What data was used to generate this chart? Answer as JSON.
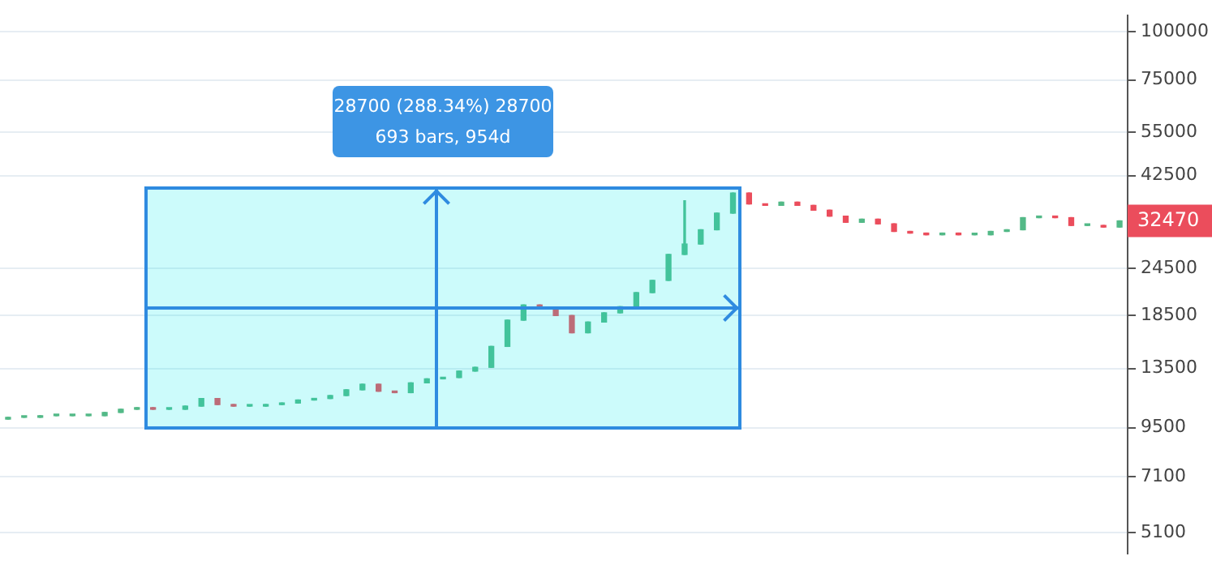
{
  "chart_data": {
    "type": "candlestick",
    "categories": [
      null,
      null,
      null,
      null,
      null,
      null,
      null,
      null,
      null,
      null,
      null,
      null,
      null,
      null,
      null,
      null,
      null,
      null,
      null,
      null,
      null,
      null,
      null,
      null,
      null,
      null,
      null,
      null,
      null,
      null,
      null,
      null,
      null,
      null,
      null,
      null,
      null,
      null,
      null,
      null,
      null,
      null,
      null,
      null,
      null,
      null,
      null,
      null,
      null,
      null,
      null,
      null,
      null,
      null,
      null,
      null,
      null,
      null,
      null,
      null,
      null,
      null,
      null,
      null,
      null,
      null,
      null,
      null,
      null,
      null
    ],
    "ohlc": [
      [
        10000,
        10100,
        10000,
        10100
      ],
      [
        10100,
        10100,
        10100,
        10100
      ],
      [
        10100,
        10200,
        10100,
        10200
      ],
      [
        10200,
        10200,
        10200,
        10200
      ],
      [
        10200,
        10200,
        10200,
        10200
      ],
      [
        10200,
        10200,
        10200,
        10200
      ],
      [
        10200,
        10400,
        10200,
        10400
      ],
      [
        10400,
        10600,
        10400,
        10600
      ],
      [
        10600,
        10700,
        10600,
        10700
      ],
      [
        10700,
        10700,
        10600,
        10600
      ],
      [
        10600,
        10600,
        10600,
        10600
      ],
      [
        10600,
        10800,
        10600,
        10800
      ],
      [
        10800,
        11300,
        10800,
        11300
      ],
      [
        11300,
        11300,
        10900,
        10900
      ],
      [
        10900,
        10900,
        10800,
        10800
      ],
      [
        10800,
        10800,
        10800,
        10800
      ],
      [
        10800,
        10900,
        10800,
        10900
      ],
      [
        10900,
        11000,
        10900,
        11000
      ],
      [
        11000,
        11200,
        11000,
        11200
      ],
      [
        11200,
        11300,
        11200,
        11300
      ],
      [
        11300,
        11500,
        11300,
        11500
      ],
      [
        11500,
        11900,
        11500,
        11900
      ],
      [
        11900,
        12300,
        11900,
        12300
      ],
      [
        12300,
        12300,
        11800,
        11800
      ],
      [
        11800,
        11800,
        11700,
        11700
      ],
      [
        11700,
        12400,
        11700,
        12400
      ],
      [
        12400,
        12700,
        12400,
        12700
      ],
      [
        12700,
        12800,
        12700,
        12800
      ],
      [
        12800,
        13300,
        12800,
        13300
      ],
      [
        13300,
        13600,
        13300,
        13600
      ],
      [
        13600,
        15400,
        13600,
        15400
      ],
      [
        15400,
        18000,
        15400,
        18000
      ],
      [
        18000,
        19700,
        18000,
        19700
      ],
      [
        19700,
        19700,
        19300,
        19300
      ],
      [
        19300,
        19300,
        18500,
        18500
      ],
      [
        18500,
        18500,
        16700,
        16700
      ],
      [
        16700,
        17800,
        16700,
        17800
      ],
      [
        17800,
        18800,
        17800,
        18800
      ],
      [
        18800,
        19500,
        18800,
        19500
      ],
      [
        19500,
        21200,
        19500,
        21200
      ],
      [
        21200,
        22800,
        21200,
        22800
      ],
      [
        22800,
        26600,
        22800,
        26600
      ],
      [
        26600,
        36600,
        26600,
        28300
      ],
      [
        28300,
        30800,
        28300,
        30800
      ],
      [
        30800,
        34000,
        30800,
        34000
      ],
      [
        34000,
        38300,
        34000,
        38300
      ],
      [
        38300,
        38300,
        35900,
        35900
      ],
      [
        35900,
        35900,
        35600,
        35600
      ],
      [
        35600,
        36300,
        35600,
        36300
      ],
      [
        36300,
        36300,
        35600,
        35600
      ],
      [
        35600,
        35600,
        34600,
        34600
      ],
      [
        34600,
        34600,
        33400,
        33400
      ],
      [
        33400,
        33400,
        32200,
        32200
      ],
      [
        32200,
        32800,
        32200,
        32800
      ],
      [
        32800,
        32800,
        31900,
        31900
      ],
      [
        31900,
        31900,
        30500,
        30500
      ],
      [
        30500,
        30500,
        30200,
        30200
      ],
      [
        30200,
        30200,
        29900,
        29900
      ],
      [
        29900,
        30200,
        29900,
        30200
      ],
      [
        30200,
        30200,
        29900,
        29900
      ],
      [
        29900,
        29900,
        29900,
        29900
      ],
      [
        29900,
        30500,
        29900,
        30500
      ],
      [
        30500,
        30800,
        30500,
        30800
      ],
      [
        30800,
        33100,
        30800,
        33100
      ],
      [
        33100,
        33400,
        33100,
        33400
      ],
      [
        33400,
        33400,
        33100,
        33100
      ],
      [
        33100,
        33100,
        31600,
        31600
      ],
      [
        31600,
        31600,
        31600,
        31600
      ],
      [
        31600,
        31600,
        31300,
        31300
      ],
      [
        31300,
        32470,
        31300,
        32470
      ]
    ],
    "log": true,
    "ylim": [
      4500,
      110000
    ],
    "yticks": [
      5100,
      7100,
      9500,
      13500,
      18500,
      24500,
      42500,
      55000,
      75000,
      100000
    ],
    "grid": "y",
    "tick_labels": "y",
    "legend": false,
    "annotations": [
      "28700 (288.34%) 28700",
      "693 bars, 954d",
      "32470"
    ]
  }
}
